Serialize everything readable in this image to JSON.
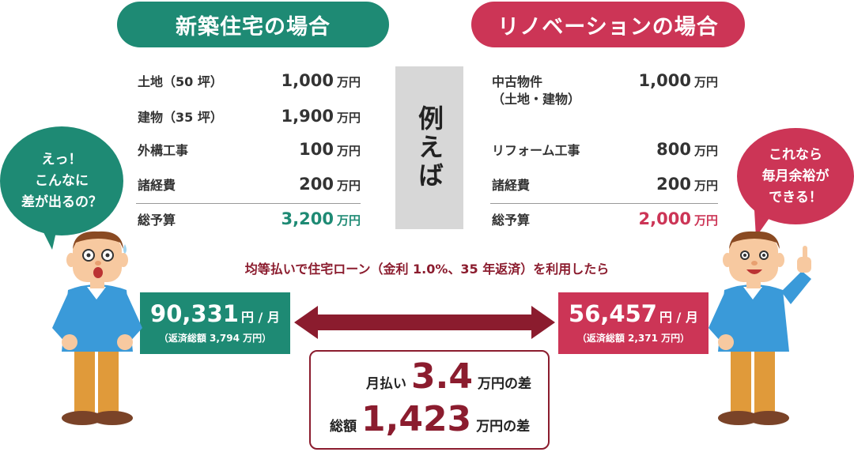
{
  "new_house": {
    "title": "新築住宅の場合",
    "rows": [
      {
        "label": "土地（50 坪）",
        "value": "1,000",
        "unit": "万円"
      },
      {
        "label": "建物（35 坪）",
        "value": "1,900",
        "unit": "万円"
      },
      {
        "label": "外構工事",
        "value": "100",
        "unit": "万円"
      },
      {
        "label": "諸経費",
        "value": "200",
        "unit": "万円"
      }
    ],
    "total": {
      "label": "総予算",
      "value": "3,200",
      "unit": "万円"
    },
    "monthly": {
      "value": "90,331",
      "unit": "円 / 月",
      "total_text": "（返済総額 3,794 万円）"
    }
  },
  "renovation": {
    "title": "リノベーションの場合",
    "rows": [
      {
        "label": "中古物件\n（土地・建物）",
        "value": "1,000",
        "unit": "万円"
      },
      {
        "label": "リフォーム工事",
        "value": "800",
        "unit": "万円"
      },
      {
        "label": "諸経費",
        "value": "200",
        "unit": "万円"
      }
    ],
    "total": {
      "label": "総予算",
      "value": "2,000",
      "unit": "万円"
    },
    "monthly": {
      "value": "56,457",
      "unit": "円 / 月",
      "total_text": "（返済総額 2,371 万円）"
    }
  },
  "example_label": "例えば",
  "condition_text": "均等払いで住宅ローン（金利 1.0%、35 年返済）を利用したら",
  "difference": {
    "monthly_label": "月払い",
    "monthly_value": "3.4",
    "monthly_suffix": "万円の差",
    "total_label": "総額",
    "total_value": "1,423",
    "total_suffix": "万円の差"
  },
  "bubbles": {
    "left": "えっ！\nこんなに\n差が出るの？",
    "right": "これなら\n毎月余裕が\nできる！"
  },
  "colors": {
    "green": "#1e8a74",
    "red": "#cc3556",
    "dark_red": "#8b1c2e",
    "gray_box": "#d7d7d7"
  },
  "icons": [
    "surprised-man-illustration",
    "happy-man-pointing-illustration",
    "double-headed-arrow-icon"
  ]
}
